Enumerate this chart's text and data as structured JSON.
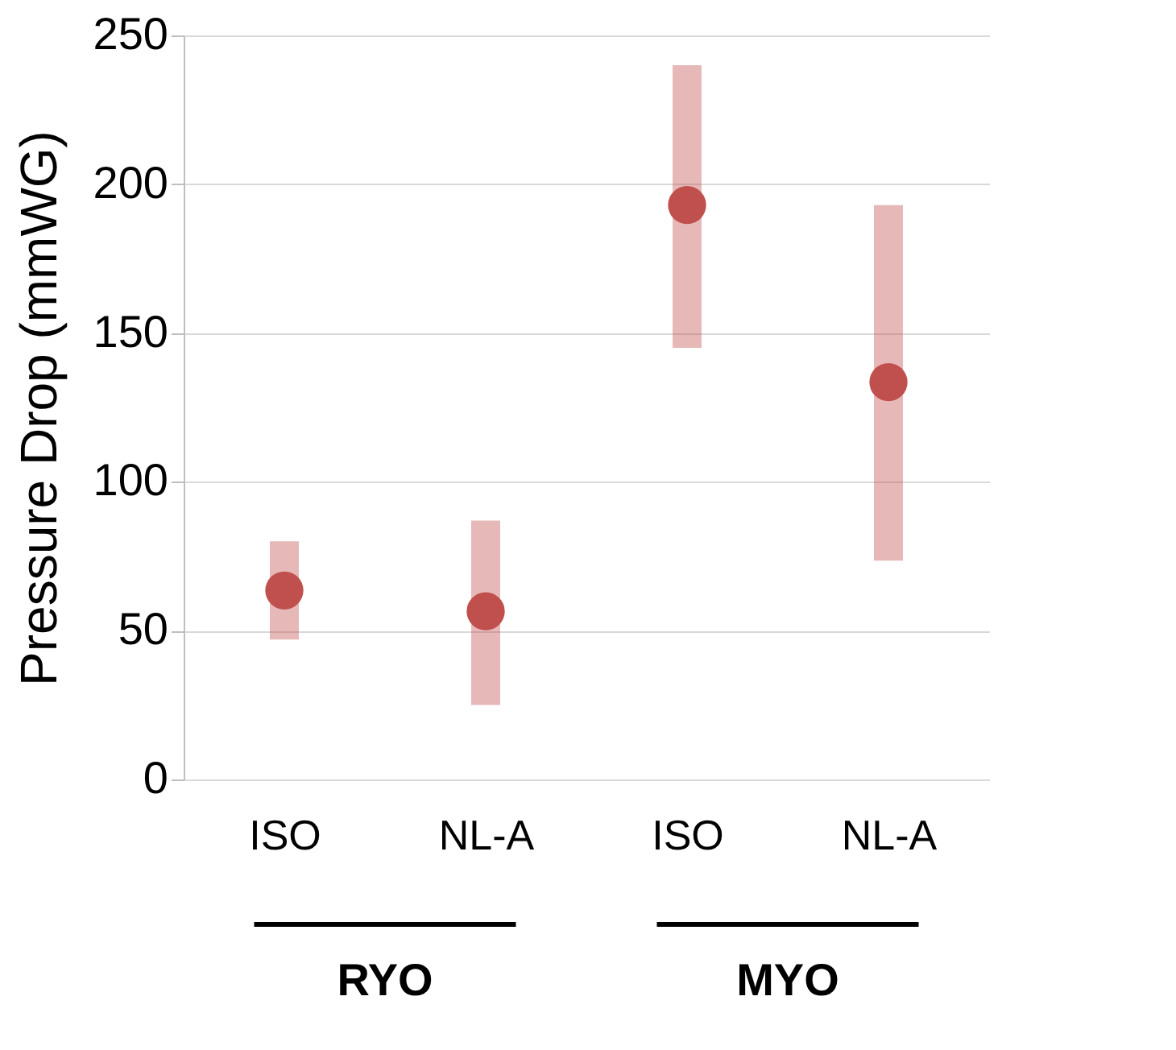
{
  "chart_data": {
    "type": "scatter",
    "categories": [
      "ISO",
      "NL-A",
      "ISO",
      "NL-A"
    ],
    "series": [
      {
        "color": "#c0504d",
        "values": [
          63.5,
          56.5,
          193,
          133.5
        ],
        "errors": [
          [
            47,
            80
          ],
          [
            25,
            87
          ],
          [
            145,
            240
          ],
          [
            73.5,
            193
          ]
        ]
      }
    ],
    "ylabel": "Pressure Drop (mmWG)",
    "ylim": [
      0,
      250
    ],
    "yticks": [
      0,
      50,
      100,
      150,
      200,
      250
    ],
    "grid": "y",
    "marker": "circle",
    "annotations": [
      "RYO",
      "MYO"
    ]
  }
}
